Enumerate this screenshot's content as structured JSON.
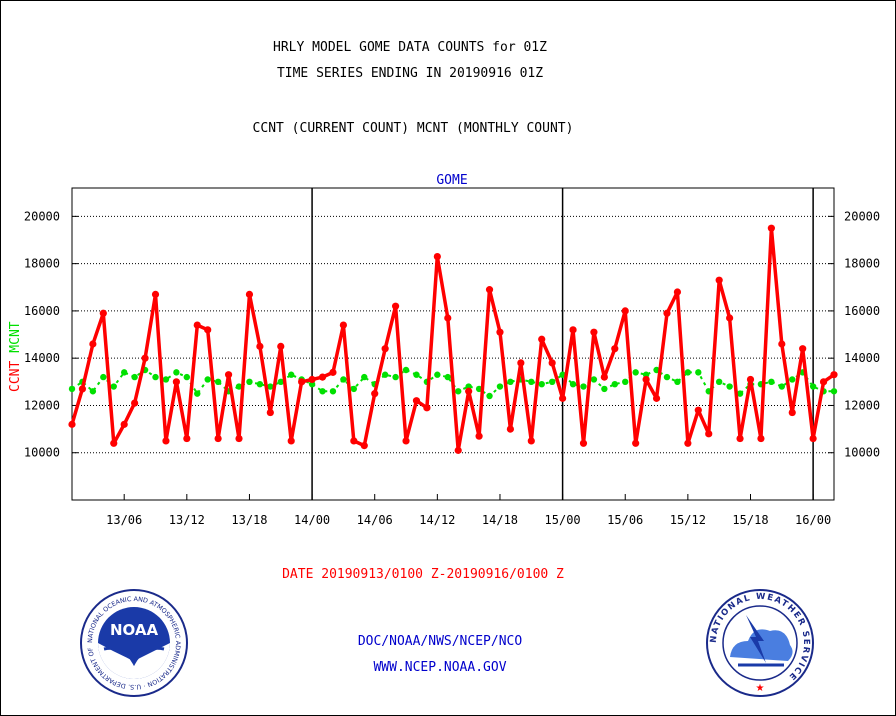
{
  "titles": {
    "line1": "HRLY MODEL GOME DATA COUNTS for 01Z",
    "line2": "TIME SERIES ENDING IN 20190916 01Z",
    "line3": "CCNT (CURRENT COUNT) MCNT (MONTHLY COUNT)"
  },
  "footer": {
    "date_range": "DATE 20190913/0100 Z-20190916/0100 Z",
    "org": "DOC/NOAA/NWS/NCEP/NCO",
    "url": "WWW.NCEP.NOAA.GOV"
  },
  "logos": {
    "noaa_text": "NOAA",
    "noaa_ring": "NATIONAL OCEANIC AND ATMOSPHERIC ADMINISTRATION · U.S. DEPARTMENT OF COMMERCE ·",
    "nws_ring": "NATIONAL WEATHER SERVICE"
  },
  "colors": {
    "ccnt": "#ff0000",
    "mcnt": "#00e000",
    "title_dark": "#000000",
    "gome": "#0000cc",
    "footer_blue": "#0000cc",
    "date_red": "#ff0000"
  },
  "chart_data": {
    "type": "line",
    "title": "GOME",
    "ylabel_parts": [
      {
        "text": "CCNT",
        "color": "#ff0000"
      },
      {
        "text": "MCNT",
        "color": "#00e000"
      }
    ],
    "x_tick_labels": [
      "13/06",
      "13/12",
      "13/18",
      "14/00",
      "14/06",
      "14/12",
      "14/18",
      "15/00",
      "15/06",
      "15/12",
      "15/18",
      "16/00"
    ],
    "x_tick_hours": [
      6,
      12,
      18,
      24,
      30,
      36,
      42,
      48,
      54,
      60,
      66,
      72
    ],
    "day_boundaries_hours": [
      24,
      48,
      72
    ],
    "xlim_hours": [
      1,
      74
    ],
    "ylim": [
      8000,
      21200
    ],
    "y_ticks": [
      10000,
      12000,
      14000,
      16000,
      18000,
      20000
    ],
    "y_tick_labels": [
      "10000",
      "12000",
      "14000",
      "16000",
      "18000",
      "20000"
    ],
    "grid": "horizontal dotted",
    "series": [
      {
        "name": "CCNT",
        "color": "#ff0000",
        "x": [
          1,
          2,
          3,
          4,
          5,
          6,
          7,
          8,
          9,
          10,
          11,
          12,
          13,
          14,
          15,
          16,
          17,
          18,
          19,
          20,
          21,
          22,
          23,
          24,
          25,
          26,
          27,
          28,
          29,
          30,
          31,
          32,
          33,
          34,
          35,
          36,
          37,
          38,
          39,
          40,
          41,
          42,
          43,
          44,
          45,
          46,
          47,
          48,
          49,
          50,
          51,
          52,
          53,
          54,
          55,
          56,
          57,
          58,
          59,
          60,
          61,
          62,
          63,
          64,
          65,
          66,
          67,
          68,
          69,
          70,
          71,
          72,
          73,
          74
        ],
        "values": [
          11200,
          12700,
          14600,
          15900,
          10400,
          11200,
          12100,
          14000,
          16700,
          10500,
          13000,
          10600,
          15400,
          15200,
          10600,
          13300,
          10600,
          16700,
          14500,
          11700,
          14500,
          10500,
          13000,
          13100,
          13200,
          13400,
          15400,
          10500,
          10300,
          12500,
          14400,
          16200,
          10500,
          12200,
          11900,
          18300,
          15700,
          10100,
          12600,
          10700,
          16900,
          15100,
          11000,
          13800,
          10500,
          14800,
          13800,
          12300,
          15200,
          10400,
          15100,
          13200,
          14400,
          16000,
          10400,
          13100,
          12300,
          15900,
          16800,
          10400,
          11800,
          10800,
          17300,
          15700,
          10600,
          13100,
          10600,
          19500,
          14600,
          11700,
          14400,
          10600,
          13000,
          13300
        ]
      },
      {
        "name": "MCNT",
        "color": "#00e000",
        "x": [
          1,
          2,
          3,
          4,
          5,
          6,
          7,
          8,
          9,
          10,
          11,
          12,
          13,
          14,
          15,
          16,
          17,
          18,
          19,
          20,
          21,
          22,
          23,
          24,
          25,
          26,
          27,
          28,
          29,
          30,
          31,
          32,
          33,
          34,
          35,
          36,
          37,
          38,
          39,
          40,
          41,
          42,
          43,
          44,
          45,
          46,
          47,
          48,
          49,
          50,
          51,
          52,
          53,
          54,
          55,
          56,
          57,
          58,
          59,
          60,
          61,
          62,
          63,
          64,
          65,
          66,
          67,
          68,
          69,
          70,
          71,
          72,
          73,
          74
        ],
        "values": [
          12700,
          13000,
          12600,
          13200,
          12800,
          13400,
          13200,
          13500,
          13200,
          13100,
          13400,
          13200,
          12500,
          13100,
          13000,
          12600,
          12800,
          13000,
          12900,
          12800,
          13000,
          13300,
          13100,
          12900,
          12600,
          12600,
          13100,
          12700,
          13200,
          12900,
          13300,
          13200,
          13500,
          13300,
          13000,
          13300,
          13200,
          12600,
          12800,
          12700,
          12400,
          12800,
          13000,
          13100,
          13000,
          12900,
          13000,
          13300,
          12900,
          12800,
          13100,
          12700,
          12900,
          13000,
          13400,
          13300,
          13500,
          13200,
          13000,
          13400,
          13400,
          12600,
          13000,
          12800,
          12500,
          12900,
          12900,
          13000,
          12800,
          13100,
          13400,
          12800,
          12600,
          12600
        ]
      }
    ]
  }
}
